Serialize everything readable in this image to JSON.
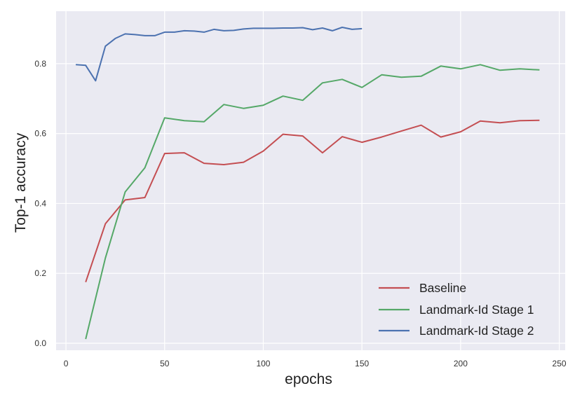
{
  "chart_data": {
    "type": "line",
    "title": "",
    "xlabel": "epochs",
    "ylabel": "Top-1 accuracy",
    "xlim": [
      -5,
      253
    ],
    "ylim": [
      -0.02,
      0.95
    ],
    "xticks": [
      0,
      50,
      100,
      150,
      200,
      250
    ],
    "yticks": [
      0.0,
      0.2,
      0.4,
      0.6,
      0.8
    ],
    "ytick_labels": [
      "0.0",
      "0.2",
      "0.4",
      "0.6",
      "0.8"
    ],
    "grid": true,
    "legend_position": "lower-right",
    "background_color": "#eaeaf2",
    "series": [
      {
        "name": "Baseline",
        "color": "#c44e52",
        "x": [
          10,
          20,
          30,
          40,
          50,
          60,
          70,
          80,
          90,
          100,
          110,
          120,
          130,
          140,
          150,
          160,
          170,
          180,
          190,
          200,
          210,
          220,
          230,
          240
        ],
        "y": [
          0.175,
          0.342,
          0.41,
          0.417,
          0.543,
          0.545,
          0.515,
          0.511,
          0.518,
          0.55,
          0.598,
          0.593,
          0.545,
          0.591,
          0.575,
          0.59,
          0.607,
          0.624,
          0.59,
          0.605,
          0.636,
          0.631,
          0.637,
          0.638
        ]
      },
      {
        "name": "Landmark-Id Stage 1",
        "color": "#55a868",
        "x": [
          10,
          20,
          30,
          40,
          50,
          60,
          70,
          80,
          90,
          100,
          110,
          120,
          130,
          140,
          150,
          160,
          170,
          180,
          190,
          200,
          210,
          220,
          230,
          240
        ],
        "y": [
          0.012,
          0.244,
          0.433,
          0.502,
          0.645,
          0.637,
          0.634,
          0.683,
          0.672,
          0.681,
          0.707,
          0.695,
          0.745,
          0.755,
          0.732,
          0.768,
          0.761,
          0.764,
          0.793,
          0.785,
          0.797,
          0.781,
          0.785,
          0.782
        ]
      },
      {
        "name": "Landmark-Id Stage 2",
        "color": "#4c72b0",
        "x": [
          5,
          10,
          15,
          20,
          25,
          30,
          35,
          40,
          45,
          50,
          55,
          60,
          65,
          70,
          75,
          80,
          85,
          90,
          95,
          100,
          105,
          110,
          115,
          120,
          125,
          130,
          135,
          140,
          145,
          150
        ],
        "y": [
          0.797,
          0.795,
          0.751,
          0.85,
          0.872,
          0.885,
          0.883,
          0.88,
          0.88,
          0.89,
          0.89,
          0.894,
          0.893,
          0.89,
          0.898,
          0.894,
          0.895,
          0.899,
          0.901,
          0.901,
          0.901,
          0.902,
          0.902,
          0.903,
          0.897,
          0.902,
          0.894,
          0.904,
          0.898,
          0.9
        ]
      }
    ]
  }
}
